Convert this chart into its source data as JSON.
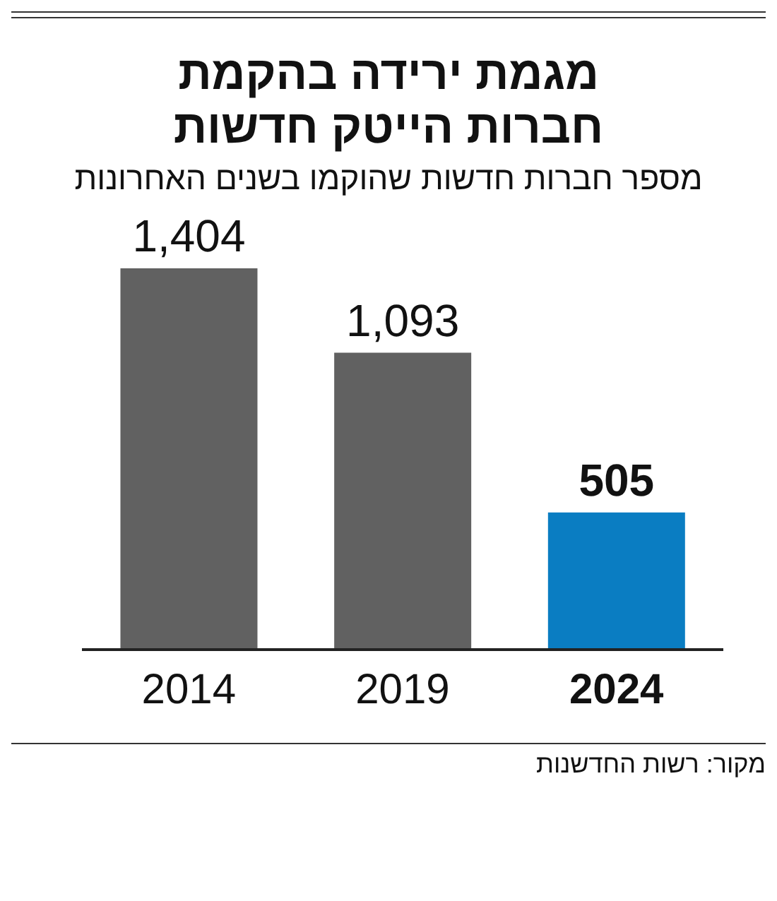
{
  "chart_data": {
    "type": "bar",
    "title": "מגמת ירידה בהקמת חברות הייטק חדשות",
    "subtitle": "מספר חברות חדשות שהוקמו בשנים האחרונות",
    "categories": [
      "2014",
      "2019",
      "2024"
    ],
    "values": [
      1404,
      1093,
      505
    ],
    "value_labels": [
      "1,404",
      "1,093",
      "505"
    ],
    "colors": [
      "#616161",
      "#616161",
      "#0a7dc2"
    ],
    "annotations": [
      "מקור: רשות החדשנות"
    ]
  }
}
